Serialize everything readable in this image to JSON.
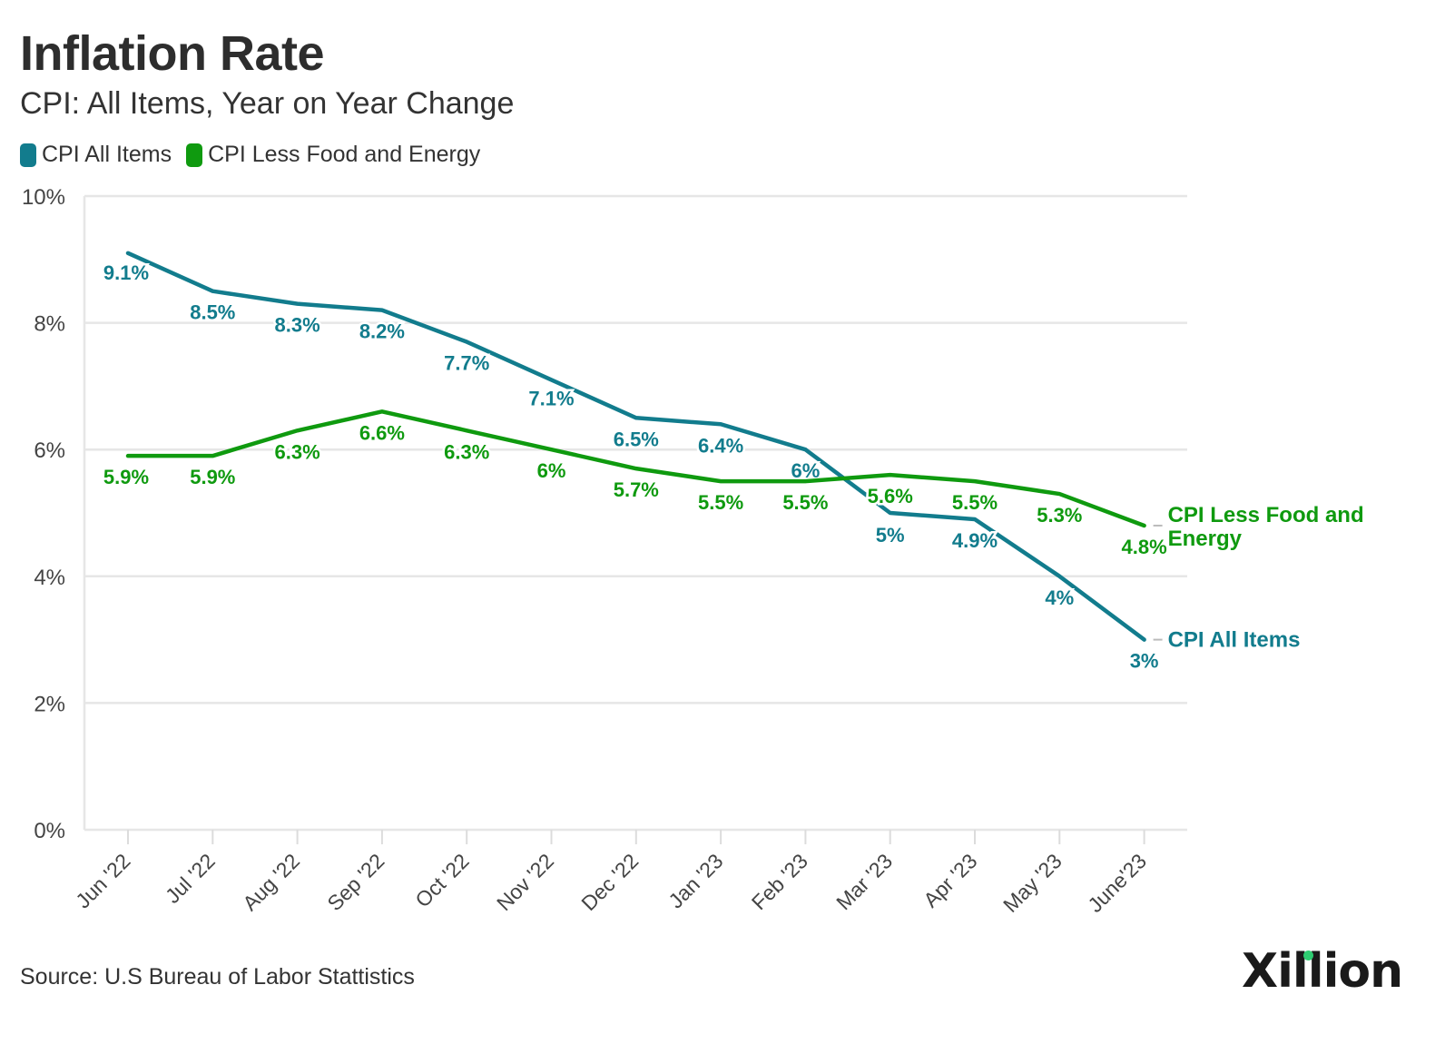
{
  "title": "Inflation Rate",
  "subtitle": "CPI: All Items, Year on Year Change",
  "source": "Source: U.S Bureau of Labor Stattistics",
  "logo_text": "Xillion",
  "colors": {
    "cpi_all": "#127c8d",
    "cpi_core": "#0f9a0f",
    "grid": "#e6e6e6",
    "text": "#333333"
  },
  "legend": [
    {
      "label": "CPI All Items",
      "color": "#127c8d"
    },
    {
      "label": "CPI Less Food and Energy",
      "color": "#0f9a0f"
    }
  ],
  "chart_data": {
    "type": "line",
    "categories": [
      "Jun '22",
      "Jul '22",
      "Aug '22",
      "Sep '22",
      "Oct '22",
      "Nov '22",
      "Dec '22",
      "Jan '23",
      "Feb '23",
      "Mar '23",
      "Apr '23",
      "May '23",
      "June'23"
    ],
    "series": [
      {
        "name": "CPI All Items",
        "end_label": "CPI All Items",
        "color": "#127c8d",
        "values": [
          9.1,
          8.5,
          8.3,
          8.2,
          7.7,
          7.1,
          6.5,
          6.4,
          6.0,
          5.0,
          4.9,
          4.0,
          3.0
        ],
        "labels": [
          "9.1%",
          "8.5%",
          "8.3%",
          "8.2%",
          "7.7%",
          "7.1%",
          "6.5%",
          "6.4%",
          "6%",
          "5%",
          "4.9%",
          "4%",
          "3%"
        ]
      },
      {
        "name": "CPI Less Food and Energy",
        "end_label": "CPI Less Food and Energy",
        "color": "#0f9a0f",
        "values": [
          5.9,
          5.9,
          6.3,
          6.6,
          6.3,
          6.0,
          5.7,
          5.5,
          5.5,
          5.6,
          5.5,
          5.3,
          4.8
        ],
        "labels": [
          "5.9%",
          "5.9%",
          "6.3%",
          "6.6%",
          "6.3%",
          "6%",
          "5.7%",
          "5.5%",
          "5.5%",
          "5.6%",
          "5.5%",
          "5.3%",
          "4.8%"
        ]
      }
    ],
    "y_ticks": [
      0,
      2,
      4,
      6,
      8,
      10
    ],
    "y_tick_labels": [
      "0%",
      "2%",
      "4%",
      "6%",
      "8%",
      "10%"
    ],
    "ylim": [
      0,
      10
    ],
    "grid": true,
    "legend_position": "top-left"
  }
}
